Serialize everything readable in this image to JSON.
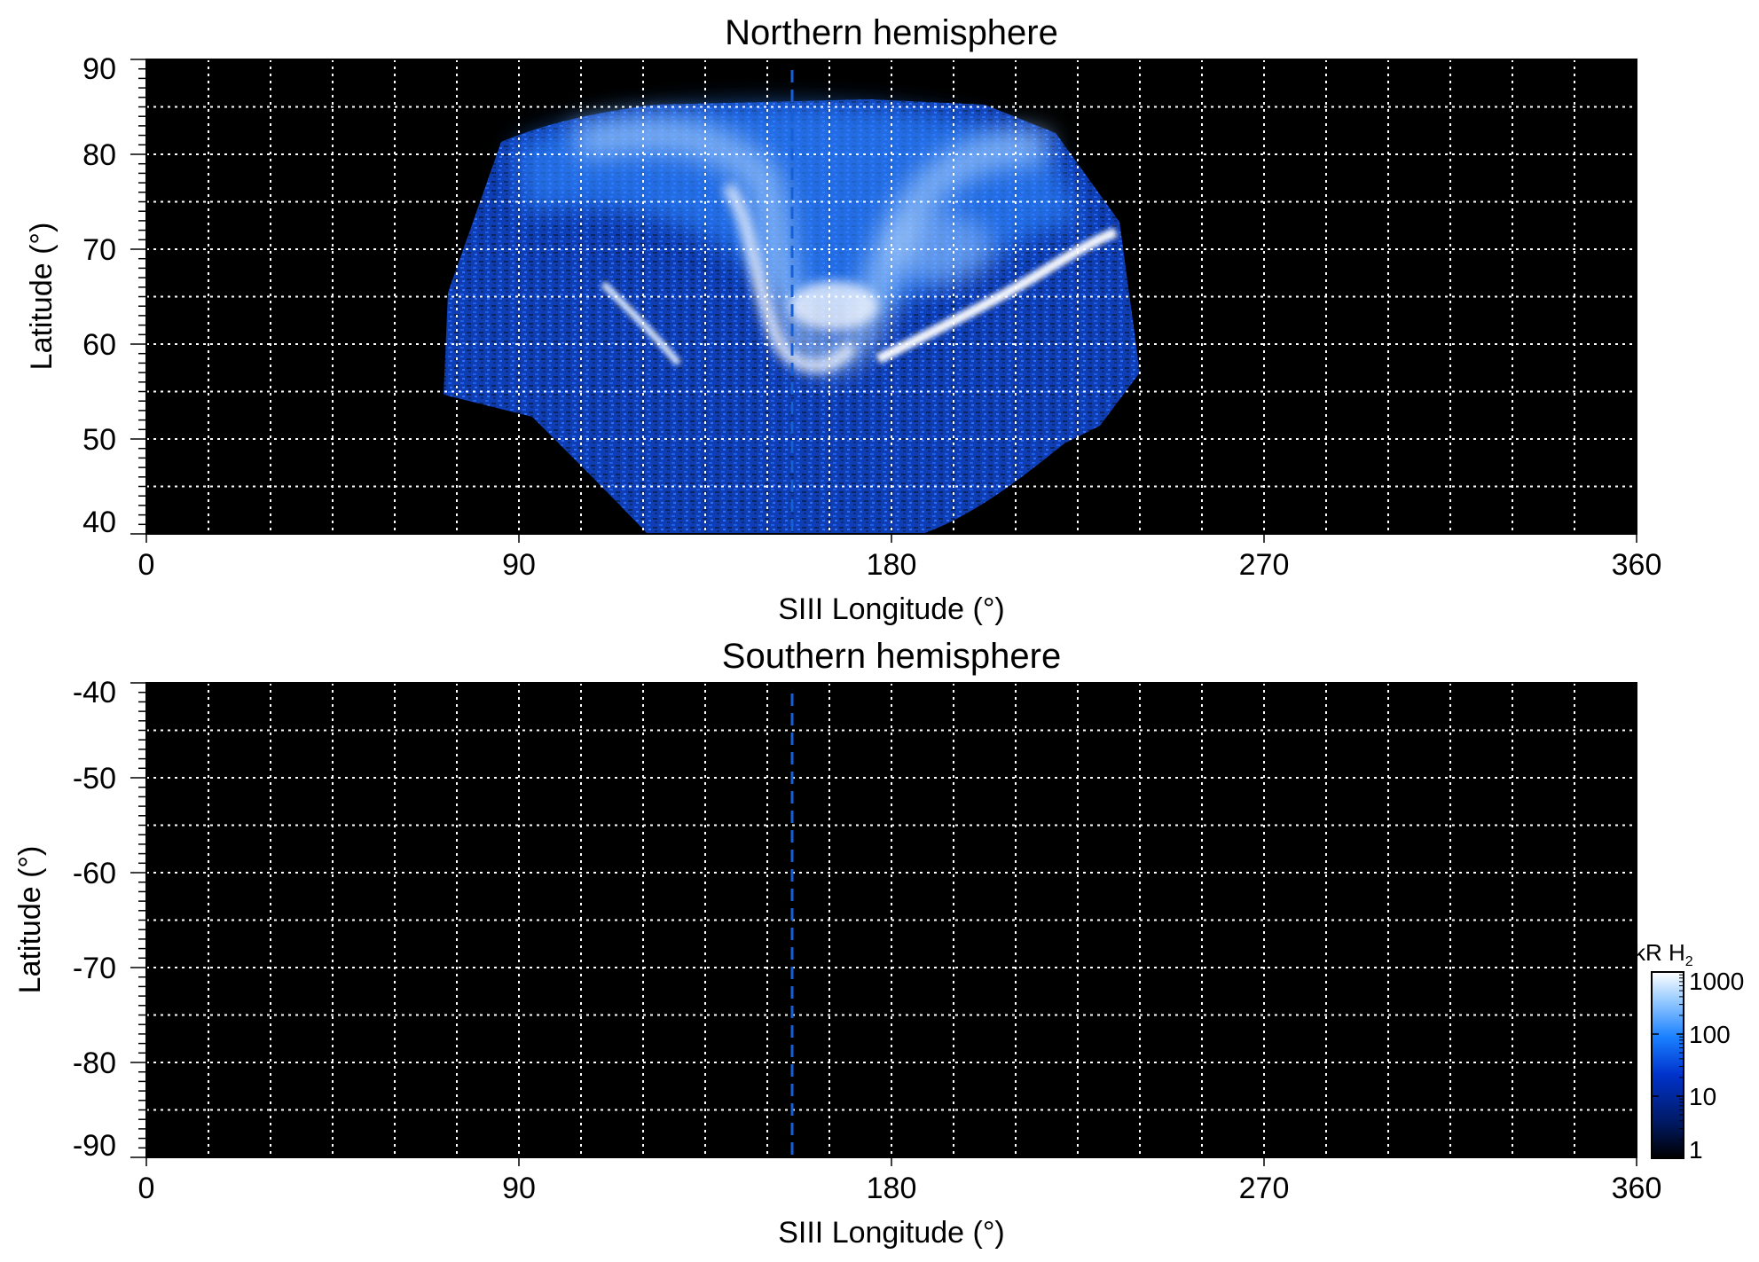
{
  "chart_data": [
    {
      "type": "heatmap",
      "title": "Northern hemisphere",
      "xlabel": "SIII Longitude (°)",
      "ylabel": "Latitude (°)",
      "xlim": [
        0,
        360
      ],
      "ylim": [
        40,
        90
      ],
      "xticks": [
        "0",
        "90",
        "180",
        "270",
        "360"
      ],
      "yticks": [
        "40",
        "50",
        "60",
        "70",
        "80",
        "90"
      ],
      "grid": true,
      "reference_longitude": 156,
      "reference_line_style": "dashed blue vertical line",
      "emission_coverage_longitude": [
        73,
        240
      ],
      "main_oval_arcs": [
        {
          "lon_range": [
            95,
            130
          ],
          "lat_range": [
            58,
            64
          ]
        },
        {
          "lon_range": [
            178,
            235
          ],
          "lat_range": [
            59,
            71
          ]
        }
      ]
    },
    {
      "type": "heatmap",
      "title": "Southern hemisphere",
      "xlabel": "SIII Longitude (°)",
      "ylabel": "Latitude (°)",
      "xlim": [
        0,
        360
      ],
      "ylim": [
        -90,
        -40
      ],
      "xticks": [
        "0",
        "90",
        "180",
        "270",
        "360"
      ],
      "yticks": [
        "-40",
        "-50",
        "-60",
        "-70",
        "-80",
        "-90"
      ],
      "grid": true,
      "reference_longitude": 156,
      "reference_line_style": "dashed blue vertical line"
    }
  ],
  "colorbar": {
    "label_main": "kR H",
    "label_sub": "2",
    "scale": "log",
    "range": [
      1,
      1000
    ],
    "ticks": [
      "1000",
      "100",
      "10",
      "1"
    ],
    "colors": [
      "#000000",
      "#001a66",
      "#0033cc",
      "#1a80ff",
      "#99ccff",
      "#ffffff"
    ]
  }
}
